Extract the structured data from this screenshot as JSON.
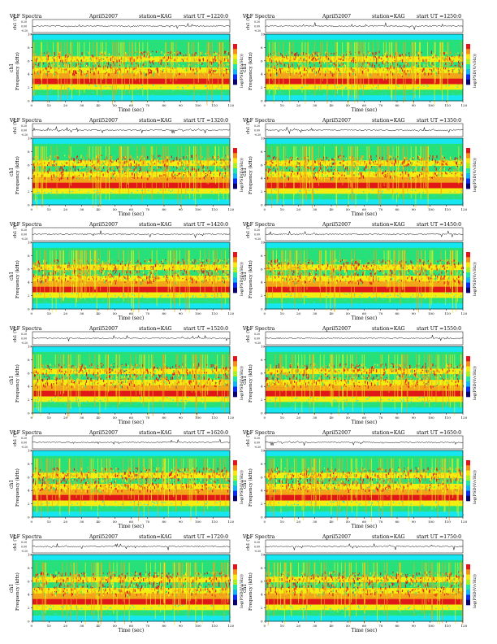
{
  "colors": {
    "cyan": "#16e6f0",
    "green": "#28e07a",
    "yellow": "#f2ee12",
    "orange": "#f2a51a",
    "red": "#e01818",
    "colorbar": [
      "#08026a",
      "#0a2cf0",
      "#12b4f4",
      "#22e6a8",
      "#a8f020",
      "#f6e812",
      "#f4901a",
      "#e0161a"
    ]
  },
  "chart_data": [
    {
      "type": "heatmap",
      "heading": "VLF Spectra",
      "date": "April52007",
      "station": "station=KAG",
      "start_ut": "start UT =1220:0",
      "ut": "1220",
      "panel": "left"
    },
    {
      "type": "heatmap",
      "heading": "VLF Spectra",
      "date": "April52007",
      "station": "station=KAG",
      "start_ut": "start UT =1250:0",
      "ut": "1250",
      "panel": "right"
    },
    {
      "type": "heatmap",
      "heading": "VLF Spectra",
      "date": "April52007",
      "station": "station=KAG",
      "start_ut": "start UT =1320:0",
      "ut": "1320",
      "panel": "left"
    },
    {
      "type": "heatmap",
      "heading": "VLF Spectra",
      "date": "April52007",
      "station": "station=KAG",
      "start_ut": "start UT =1350:0",
      "ut": "1350",
      "panel": "right"
    },
    {
      "type": "heatmap",
      "heading": "VLF Spectra",
      "date": "April52007",
      "station": "station=KAG",
      "start_ut": "start UT =1420:0",
      "ut": "1420",
      "panel": "left"
    },
    {
      "type": "heatmap",
      "heading": "VLF Spectra",
      "date": "April52007",
      "station": "station=KAG",
      "start_ut": "start UT =1450:0",
      "ut": "1450",
      "panel": "right"
    },
    {
      "type": "heatmap",
      "heading": "VLF Spectra",
      "date": "April52007",
      "station": "station=KAG",
      "start_ut": "start UT =1520:0",
      "ut": "1520",
      "panel": "left"
    },
    {
      "type": "heatmap",
      "heading": "VLF Spectra",
      "date": "April52007",
      "station": "station=KAG",
      "start_ut": "start UT =1550:0",
      "ut": "1550",
      "panel": "right"
    },
    {
      "type": "heatmap",
      "heading": "VLF Spectra",
      "date": "April52007",
      "station": "station=KAG",
      "start_ut": "start UT =1620:0",
      "ut": "1620",
      "panel": "left"
    },
    {
      "type": "heatmap",
      "heading": "VLF Spectra",
      "date": "April52007",
      "station": "station=KAG",
      "start_ut": "start UT =1650:0",
      "ut": "1650",
      "panel": "right"
    },
    {
      "type": "heatmap",
      "heading": "VLF Spectra",
      "date": "April52007",
      "station": "station=KAG",
      "start_ut": "start UT =1720:0",
      "ut": "1720",
      "panel": "left"
    },
    {
      "type": "heatmap",
      "heading": "VLF Spectra",
      "date": "April52007",
      "station": "station=KAG",
      "start_ut": "start UT =1750:0",
      "ut": "1750",
      "panel": "right"
    }
  ],
  "axes": {
    "xlabel": "Time (sec)",
    "ylabel_freq": "Frequency (kHz)",
    "ylabel_channel": "ch1",
    "ylabel_volt": "ch1 (V)",
    "colorbar_label": "log(PSD(V/√Hz))",
    "xticks": [
      0,
      10,
      20,
      30,
      40,
      50,
      60,
      70,
      80,
      90,
      100,
      110,
      120
    ],
    "yticks": [
      0,
      2,
      4,
      6,
      8,
      10
    ],
    "vticks": [
      "0.20",
      "0.00",
      "-0.20"
    ],
    "xlim": [
      0,
      120
    ],
    "ylim_khz": [
      0,
      10
    ]
  }
}
